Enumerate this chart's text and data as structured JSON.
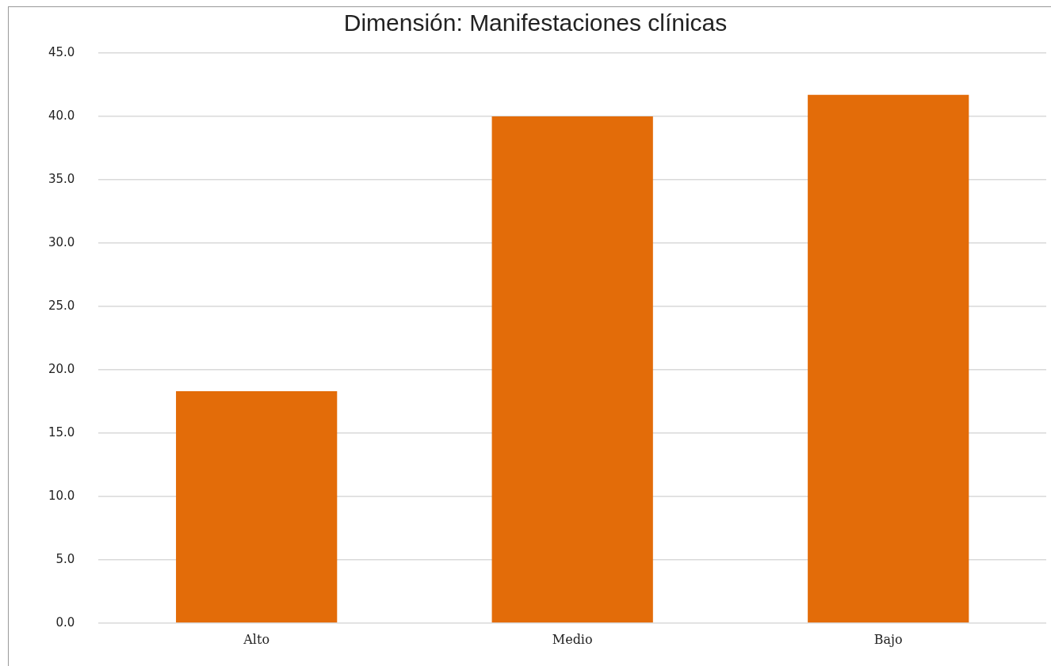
{
  "chart_data": {
    "type": "bar",
    "title": "Dimensión: Manifestaciones clínicas",
    "categories": [
      "Alto",
      "Medio",
      "Bajo"
    ],
    "values": [
      18.3,
      40.0,
      41.7
    ],
    "color": "#e36c09",
    "ylim": [
      0,
      45
    ],
    "yticks": [
      {
        "value": 0,
        "label": "0.0"
      },
      {
        "value": 5,
        "label": "5.0"
      },
      {
        "value": 10,
        "label": "10.0"
      },
      {
        "value": 15,
        "label": "15.0"
      },
      {
        "value": 20,
        "label": "20.0"
      },
      {
        "value": 25,
        "label": "25.0"
      },
      {
        "value": 30,
        "label": "30.0"
      },
      {
        "value": 35,
        "label": "35.0"
      },
      {
        "value": 40,
        "label": "40.0"
      },
      {
        "value": 45,
        "label": "45.0"
      }
    ],
    "grid": "y"
  }
}
